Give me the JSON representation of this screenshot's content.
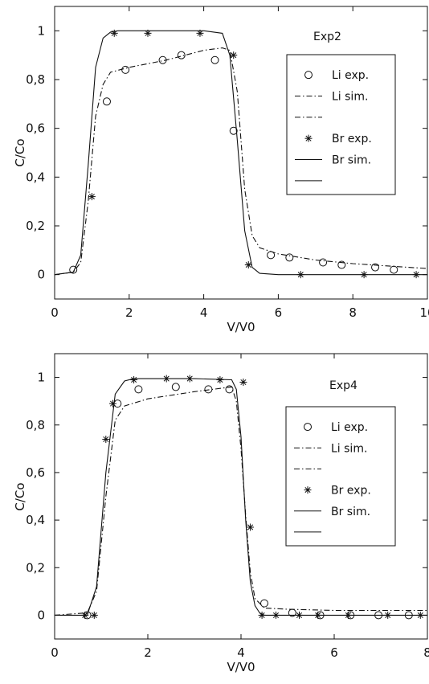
{
  "chart_data": [
    {
      "type": "line",
      "title": "Exp2",
      "xlabel": "V/V0",
      "ylabel": "C/Co",
      "xlim": [
        0,
        10
      ],
      "ylim": [
        -0.1,
        1.1
      ],
      "xticks": [
        0,
        2,
        4,
        6,
        8,
        10
      ],
      "xtick_labels": [
        "0",
        "2",
        "4",
        "6",
        "8",
        "10"
      ],
      "yticks": [
        0,
        0.2,
        0.4,
        0.6,
        0.8,
        1
      ],
      "ytick_labels": [
        "0",
        "0,2",
        "0,4",
        "0,6",
        "0,8",
        "1"
      ],
      "grid": false,
      "legend": "right",
      "series": [
        {
          "name": "Li exp.",
          "style": "circle",
          "x": [
            0.5,
            1.4,
            1.9,
            2.9,
            3.4,
            4.3,
            4.8,
            5.8,
            6.3,
            7.2,
            7.7,
            8.6,
            9.1
          ],
          "y": [
            0.02,
            0.71,
            0.84,
            0.88,
            0.9,
            0.88,
            0.59,
            0.08,
            0.07,
            0.05,
            0.04,
            0.03,
            0.02
          ]
        },
        {
          "name": "Li sim.",
          "style": "dashdot",
          "x": [
            0,
            0.5,
            0.7,
            0.9,
            1.1,
            1.3,
            1.5,
            2,
            3,
            4,
            4.5,
            4.7,
            4.9,
            5.1,
            5.3,
            5.5,
            6,
            7,
            8,
            9,
            10
          ],
          "y": [
            0,
            0.01,
            0.05,
            0.3,
            0.65,
            0.78,
            0.83,
            0.85,
            0.88,
            0.92,
            0.93,
            0.92,
            0.75,
            0.35,
            0.16,
            0.11,
            0.085,
            0.06,
            0.045,
            0.035,
            0.025
          ]
        },
        {
          "name": "Br exp.",
          "style": "star",
          "x": [
            1.0,
            1.6,
            2.5,
            3.9,
            4.8,
            5.2,
            6.6,
            8.3,
            9.7
          ],
          "y": [
            0.32,
            0.99,
            0.99,
            0.99,
            0.9,
            0.04,
            0.0,
            0.0,
            0.0
          ]
        },
        {
          "name": "Br sim.",
          "style": "solid",
          "x": [
            0,
            0.5,
            0.7,
            0.9,
            1.1,
            1.3,
            1.5,
            1.7,
            2,
            3,
            4,
            4.5,
            4.7,
            4.9,
            5.1,
            5.3,
            5.5,
            6,
            10
          ],
          "y": [
            0,
            0.01,
            0.08,
            0.45,
            0.85,
            0.97,
            0.995,
            1.0,
            1.0,
            1.0,
            1.0,
            0.99,
            0.9,
            0.55,
            0.18,
            0.03,
            0.005,
            0,
            0
          ]
        }
      ]
    },
    {
      "type": "line",
      "title": "Exp4",
      "xlabel": "V/V0",
      "ylabel": "C/Co",
      "xlim": [
        0,
        8
      ],
      "ylim": [
        -0.1,
        1.1
      ],
      "xticks": [
        0,
        2,
        4,
        6,
        8
      ],
      "xtick_labels": [
        "0",
        "2",
        "4",
        "6",
        "8"
      ],
      "yticks": [
        0,
        0.2,
        0.4,
        0.6,
        0.8,
        1
      ],
      "ytick_labels": [
        "0",
        "0,2",
        "0,4",
        "0,6",
        "0,8",
        "1"
      ],
      "grid": false,
      "legend": "right",
      "series": [
        {
          "name": "Li exp.",
          "style": "circle",
          "x": [
            0.7,
            1.35,
            1.8,
            2.6,
            3.3,
            3.75,
            4.5,
            5.1,
            5.7,
            6.35,
            6.95,
            7.6
          ],
          "y": [
            0.0,
            0.89,
            0.95,
            0.96,
            0.95,
            0.95,
            0.05,
            0.01,
            0.0,
            0.0,
            0.0,
            0.0
          ]
        },
        {
          "name": "Li sim.",
          "style": "dashdot",
          "x": [
            0,
            0.7,
            0.9,
            1.1,
            1.3,
            1.5,
            2,
            3,
            3.8,
            3.9,
            4.0,
            4.1,
            4.2,
            4.3,
            4.5,
            5,
            6,
            7,
            8
          ],
          "y": [
            0,
            0.01,
            0.1,
            0.5,
            0.82,
            0.88,
            0.91,
            0.94,
            0.96,
            0.9,
            0.7,
            0.42,
            0.18,
            0.07,
            0.03,
            0.025,
            0.02,
            0.02,
            0.02
          ]
        },
        {
          "name": "Br exp.",
          "style": "star",
          "x": [
            0.65,
            0.85,
            1.1,
            1.25,
            1.7,
            2.4,
            2.9,
            3.55,
            4.05,
            4.2,
            4.45,
            4.75,
            5.25,
            5.65,
            6.3,
            7.15,
            7.85
          ],
          "y": [
            0.0,
            0.0,
            0.74,
            0.89,
            0.99,
            0.995,
            0.995,
            0.99,
            0.98,
            0.37,
            0.0,
            0.0,
            0.0,
            0.0,
            0.0,
            0.0,
            0.0
          ]
        },
        {
          "name": "Br sim.",
          "style": "solid",
          "x": [
            0,
            0.7,
            0.9,
            1.1,
            1.3,
            1.5,
            1.7,
            2,
            3,
            3.8,
            3.9,
            4.0,
            4.1,
            4.2,
            4.3,
            4.4,
            4.5,
            8
          ],
          "y": [
            0,
            0.0,
            0.12,
            0.6,
            0.93,
            0.985,
            0.995,
            0.995,
            0.995,
            0.99,
            0.95,
            0.75,
            0.4,
            0.14,
            0.04,
            0.01,
            0.0,
            0.0
          ]
        }
      ]
    }
  ]
}
